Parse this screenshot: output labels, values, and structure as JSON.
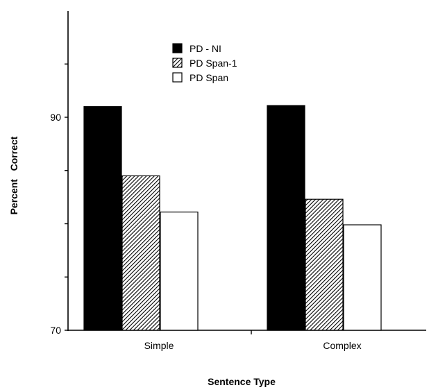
{
  "chart_data": {
    "type": "bar",
    "categories": [
      "Simple",
      "Complex"
    ],
    "series": [
      {
        "name": "PD - NI",
        "values": [
          91,
          91.1
        ],
        "fill": "solid"
      },
      {
        "name": "PD Span-1",
        "values": [
          84.5,
          82.3
        ],
        "fill": "hatched"
      },
      {
        "name": "PD Span",
        "values": [
          81.1,
          79.9
        ],
        "fill": "empty"
      }
    ],
    "title": "",
    "xlabel": "Sentence Type",
    "ylabel": "Percent   Correct",
    "ylim": [
      70,
      100
    ],
    "yticks": [
      70,
      90
    ],
    "ytick_labels": [
      "70",
      "90"
    ],
    "legend_position": "top-center",
    "grid": false,
    "colors": {
      "bar_stroke": "#000000",
      "solid": "#000000",
      "empty": "#ffffff"
    }
  }
}
